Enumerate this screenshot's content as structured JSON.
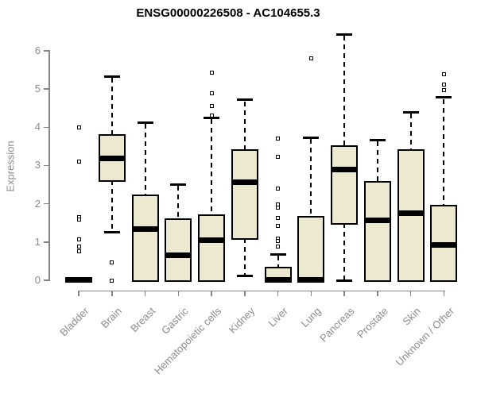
{
  "chart_data": {
    "type": "boxplot",
    "title": "ENSG00000226508 - AC104655.3",
    "xlabel": "",
    "ylabel": "Expression",
    "ylim": [
      0,
      6
    ],
    "yticks": [
      0,
      1,
      2,
      3,
      4,
      5,
      6
    ],
    "grid": false,
    "legend": null,
    "categories": [
      "Bladder",
      "Brain",
      "Breast",
      "Gastric",
      "Hematopoietic cells",
      "Kidney",
      "Liver",
      "Lung",
      "Pancreas",
      "Prostate",
      "Skin",
      "Unknown / Other"
    ],
    "boxes": [
      {
        "category": "Bladder",
        "whisker_low": null,
        "q1": 0,
        "median": 0.02,
        "q3": 0.04,
        "whisker_high": null,
        "outliers": [
          4.0,
          3.11,
          1.66,
          1.58,
          1.06,
          0.88,
          0.75
        ]
      },
      {
        "category": "Brain",
        "whisker_low": 1.25,
        "q1": 2.61,
        "median": 3.18,
        "q3": 3.78,
        "whisker_high": 5.33,
        "outliers": [
          0.46,
          0.0
        ]
      },
      {
        "category": "Breast",
        "whisker_low": null,
        "q1": 0,
        "median": 1.33,
        "q3": 2.21,
        "whisker_high": 4.13,
        "outliers": []
      },
      {
        "category": "Gastric",
        "whisker_low": null,
        "q1": 0,
        "median": 0.65,
        "q3": 1.58,
        "whisker_high": 2.51,
        "outliers": []
      },
      {
        "category": "Hematopoietic cells",
        "whisker_low": null,
        "q1": 0,
        "median": 1.04,
        "q3": 1.68,
        "whisker_high": 4.25,
        "outliers": [
          5.42,
          4.89,
          4.55,
          4.3
        ]
      },
      {
        "category": "Kidney",
        "whisker_low": 0.12,
        "q1": 1.1,
        "median": 2.57,
        "q3": 3.38,
        "whisker_high": 4.72,
        "outliers": []
      },
      {
        "category": "Liver",
        "whisker_low": null,
        "q1": 0,
        "median": 0.02,
        "q3": 0.31,
        "whisker_high": 0.68,
        "outliers": [
          3.7,
          3.22,
          2.39,
          1.98,
          1.9,
          1.62,
          1.43,
          1.1,
          1.03,
          0.88
        ]
      },
      {
        "category": "Lung",
        "whisker_low": null,
        "q1": 0,
        "median": 0.02,
        "q3": 1.63,
        "whisker_high": 3.73,
        "outliers": [
          5.81
        ]
      },
      {
        "category": "Pancreas",
        "whisker_low": 0.0,
        "q1": 1.5,
        "median": 2.89,
        "q3": 3.49,
        "whisker_high": 6.43,
        "outliers": []
      },
      {
        "category": "Prostate",
        "whisker_low": null,
        "q1": 0,
        "median": 1.56,
        "q3": 2.55,
        "whisker_high": 3.67,
        "outliers": []
      },
      {
        "category": "Skin",
        "whisker_low": null,
        "q1": 0,
        "median": 1.76,
        "q3": 3.38,
        "whisker_high": 4.4,
        "outliers": []
      },
      {
        "category": "Unknown / Other",
        "whisker_low": null,
        "q1": 0,
        "median": 0.93,
        "q3": 1.93,
        "whisker_high": 4.78,
        "outliers": [
          5.38,
          5.12,
          4.98
        ]
      }
    ],
    "colors": {
      "box_fill": "#EDE9D0",
      "box_stroke": "#000000",
      "median": "#000000",
      "axis": "#848484",
      "tick_text": "#8c8c8c",
      "title_text": "#000000",
      "background": "#ffffff"
    }
  }
}
